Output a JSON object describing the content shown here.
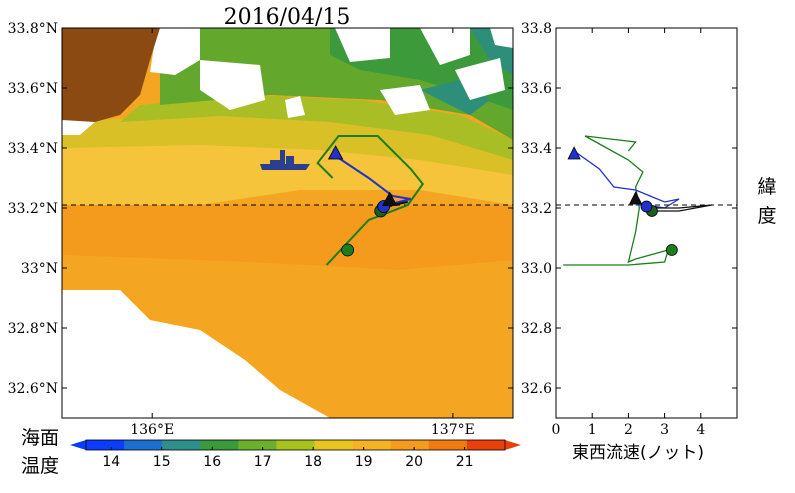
{
  "chart_data": [
    {
      "type": "map",
      "title": "2016/04/15",
      "lon_range": [
        135.7,
        137.2
      ],
      "lat_range": [
        32.5,
        33.8
      ],
      "x_ticks": [
        {
          "value": 136.0,
          "label": "136°E"
        },
        {
          "value": 137.0,
          "label": "137°E"
        }
      ],
      "y_ticks": [
        {
          "value": 33.8,
          "label": "33.8°N"
        },
        {
          "value": 33.6,
          "label": "33.6°N"
        },
        {
          "value": 33.4,
          "label": "33.4°N"
        },
        {
          "value": 33.2,
          "label": "33.2°N"
        },
        {
          "value": 33.0,
          "label": "33°N"
        },
        {
          "value": 32.8,
          "label": "32.8°N"
        },
        {
          "value": 32.6,
          "label": "32.6°N"
        }
      ],
      "reference_latitude": 33.21,
      "colorbar": {
        "label": "海面\n温度",
        "min": 13.5,
        "max": 21.8,
        "ticks": [
          14,
          15,
          16,
          17,
          18,
          19,
          20,
          21
        ],
        "colors": [
          "#0a3dff",
          "#1a6fd1",
          "#2f8f8a",
          "#3a9a3c",
          "#6ab02a",
          "#a8c21c",
          "#e8c41e",
          "#f4b224",
          "#f49a1c",
          "#f07a10",
          "#e8400a"
        ]
      },
      "tracks": [
        {
          "color": "#1a7f1a",
          "points": [
            [
              136.58,
              33.01
            ],
            [
              136.72,
              33.16
            ],
            [
              136.85,
              33.21
            ],
            [
              136.9,
              33.28
            ],
            [
              136.86,
              33.33
            ],
            [
              136.75,
              33.44
            ],
            [
              136.62,
              33.44
            ],
            [
              136.55,
              33.35
            ],
            [
              136.6,
              33.3
            ]
          ]
        },
        {
          "color": "#1f32cc",
          "points": [
            [
              136.6,
              33.38
            ],
            [
              136.72,
              33.3
            ],
            [
              136.8,
              33.24
            ],
            [
              136.86,
              33.23
            ],
            [
              136.78,
              33.21
            ]
          ]
        },
        {
          "color": "#111111",
          "points": [
            [
              136.76,
              33.19
            ],
            [
              136.8,
              33.21
            ],
            [
              136.85,
              33.22
            ]
          ]
        }
      ],
      "markers": [
        {
          "shape": "circle",
          "color": "#1a7f1a",
          "lon": 136.65,
          "lat": 33.06
        },
        {
          "shape": "circle",
          "color": "#1a5f1a",
          "lon": 136.76,
          "lat": 33.19
        },
        {
          "shape": "circle",
          "color": "#1f32cc",
          "lon": 136.77,
          "lat": 33.205
        },
        {
          "shape": "triangle",
          "color": "#1f32cc",
          "lon": 136.61,
          "lat": 33.38
        },
        {
          "shape": "triangle",
          "color": "#111111",
          "lon": 136.79,
          "lat": 33.225
        }
      ]
    },
    {
      "type": "line",
      "xlabel": "東西流速(ノット)",
      "ylabel": "緯\n度",
      "xlim": [
        0,
        5
      ],
      "ylim": [
        32.5,
        33.8
      ],
      "x_ticks": [
        0,
        1,
        2,
        3,
        4
      ],
      "y_ticks": [
        32.6,
        32.8,
        33.0,
        33.2,
        33.4,
        33.6,
        33.8
      ],
      "reference_y": 33.21,
      "series": [
        {
          "color": "#1a7f1a",
          "points": [
            [
              0.2,
              33.01
            ],
            [
              1.2,
              33.01
            ],
            [
              2.0,
              33.01
            ],
            [
              3.0,
              33.02
            ],
            [
              3.1,
              33.06
            ],
            [
              2.2,
              33.03
            ],
            [
              2.0,
              33.02
            ],
            [
              2.1,
              33.07
            ],
            [
              2.2,
              33.12
            ],
            [
              2.3,
              33.2
            ],
            [
              2.2,
              33.27
            ],
            [
              2.4,
              33.32
            ],
            [
              2.0,
              33.36
            ],
            [
              1.4,
              33.4
            ],
            [
              0.8,
              33.44
            ],
            [
              1.5,
              33.43
            ],
            [
              2.2,
              33.42
            ],
            [
              2.0,
              33.39
            ]
          ]
        },
        {
          "color": "#1f32cc",
          "points": [
            [
              0.5,
              33.39
            ],
            [
              1.2,
              33.33
            ],
            [
              1.6,
              33.27
            ],
            [
              2.2,
              33.26
            ],
            [
              2.6,
              33.24
            ],
            [
              3.0,
              33.22
            ],
            [
              3.4,
              33.23
            ],
            [
              3.0,
              33.2
            ],
            [
              2.5,
              33.21
            ],
            [
              2.2,
              33.21
            ]
          ]
        },
        {
          "color": "#111111",
          "points": [
            [
              2.2,
              33.22
            ],
            [
              2.8,
              33.2
            ],
            [
              3.4,
              33.2
            ],
            [
              4.3,
              33.21
            ],
            [
              3.4,
              33.19
            ],
            [
              2.6,
              33.19
            ]
          ]
        }
      ],
      "markers": [
        {
          "shape": "circle",
          "color": "#1a7f1a",
          "x": 3.2,
          "y": 33.06
        },
        {
          "shape": "circle",
          "color": "#1a5f1a",
          "x": 2.65,
          "y": 33.19
        },
        {
          "shape": "circle",
          "color": "#1f32cc",
          "x": 2.5,
          "y": 33.205
        },
        {
          "shape": "triangle",
          "color": "#1f32cc",
          "x": 0.5,
          "y": 33.38
        },
        {
          "shape": "triangle",
          "color": "#111111",
          "x": 2.2,
          "y": 33.23
        }
      ]
    }
  ]
}
